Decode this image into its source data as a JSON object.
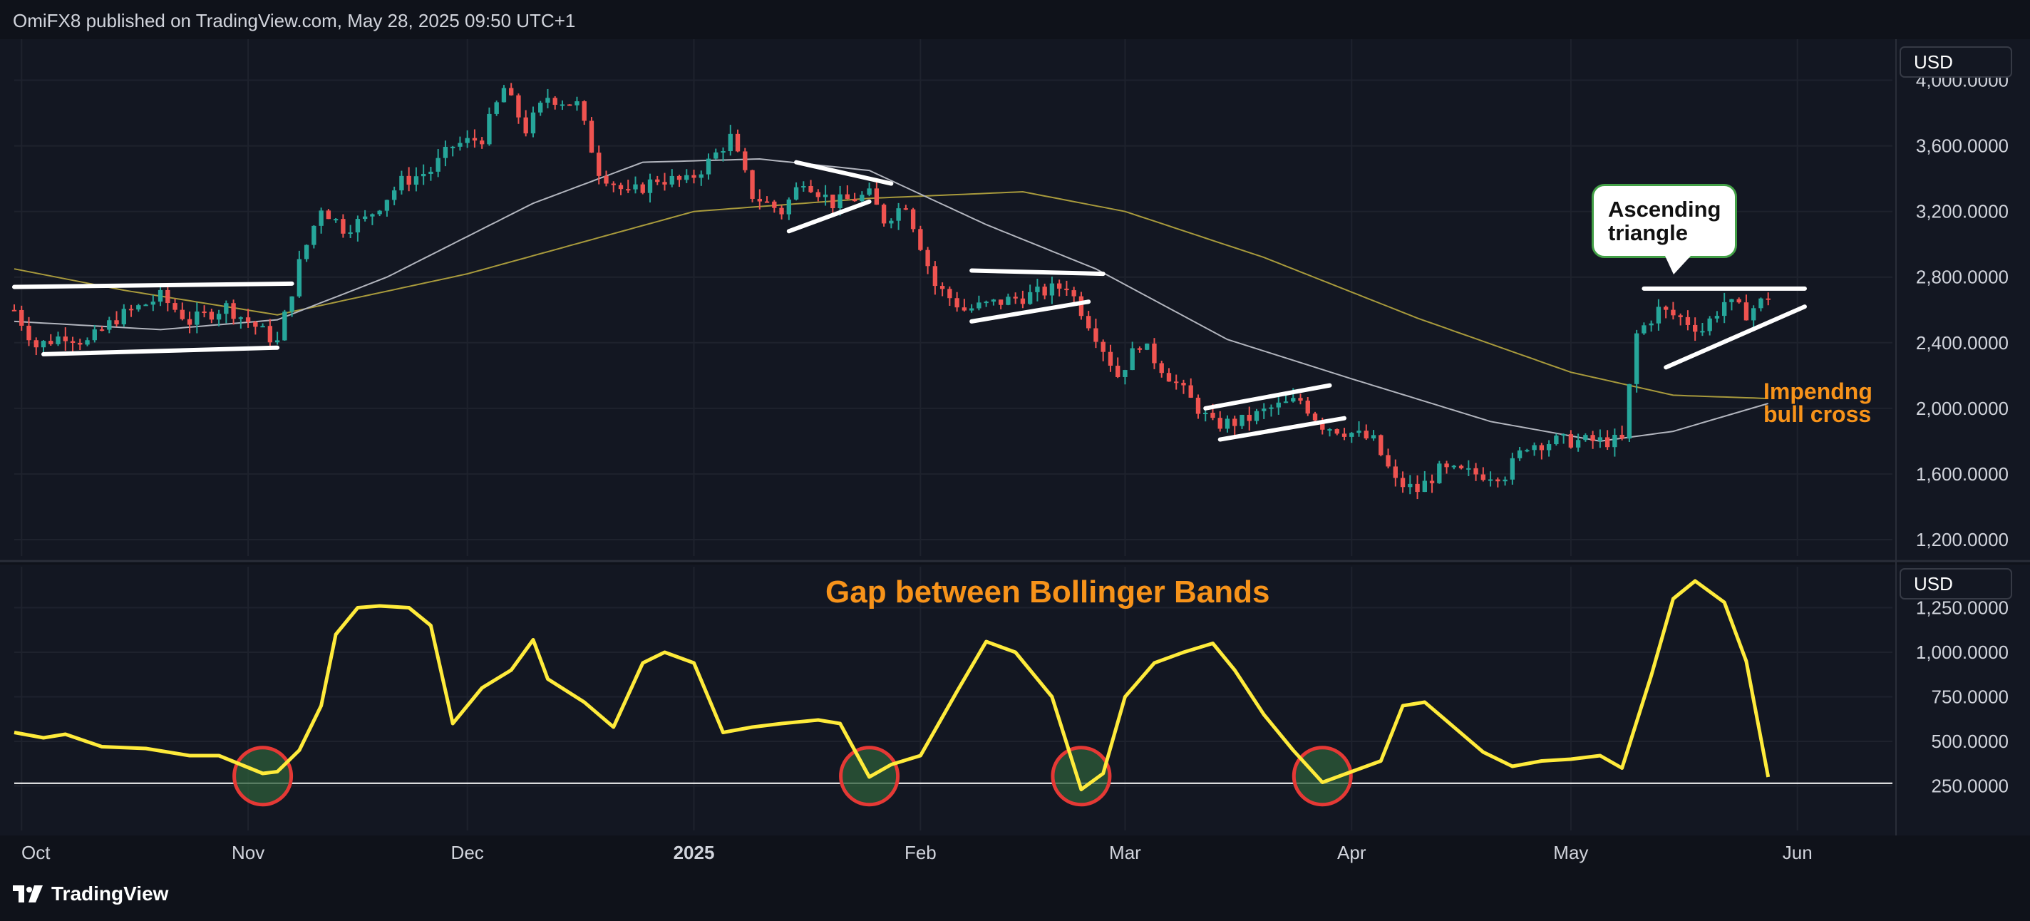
{
  "header": {
    "text": "OmiFX8 published on TradingView.com, May 28, 2025 09:50 UTC+1"
  },
  "footer": {
    "brand": "TradingView"
  },
  "colors": {
    "background": "#0f121a",
    "up": "#26a69a",
    "down": "#ef5350",
    "ma_fast": "#b2b5be",
    "ma_slow": "#a89a3c",
    "oscillator": "#ffeb3b",
    "annotation_orange": "#f7931a",
    "circle_red": "#e53935",
    "circle_fill": "#2e5e3a"
  },
  "annotations": {
    "ascending_triangle_line1": "Ascending",
    "ascending_triangle_line2": "triangle",
    "bull_cross_line1": "Impendng",
    "bull_cross_line2": "bull cross",
    "oscillator_title": "Gap between Bollinger Bands"
  },
  "chart_data": [
    {
      "type": "candlestick",
      "currency_label": "USD",
      "x_ticks": [
        "Oct",
        "Nov",
        "Dec",
        "2025",
        "Feb",
        "Mar",
        "Apr",
        "May",
        "Jun"
      ],
      "x_tick_dates": [
        "2024-10-01",
        "2024-11-01",
        "2024-12-01",
        "2025-01-01",
        "2025-02-01",
        "2025-03-01",
        "2025-04-01",
        "2025-05-01",
        "2025-06-01"
      ],
      "x_range": [
        "2024-09-30",
        "2025-06-14"
      ],
      "y_ticks": [
        "1,200.0000",
        "1,600.0000",
        "2,000.0000",
        "2,400.0000",
        "2,800.0000",
        "3,200.0000",
        "3,600.0000",
        "4,000.0000"
      ],
      "y_tick_values": [
        1200,
        1600,
        2000,
        2400,
        2800,
        3200,
        3600,
        4000
      ],
      "ylim": [
        1100,
        4250
      ],
      "ohlc_keyframes": [
        [
          "2024-09-30",
          2600
        ],
        [
          "2024-10-03",
          2380
        ],
        [
          "2024-10-07",
          2450
        ],
        [
          "2024-10-10",
          2400
        ],
        [
          "2024-10-14",
          2550
        ],
        [
          "2024-10-20",
          2680
        ],
        [
          "2024-10-24",
          2530
        ],
        [
          "2024-10-29",
          2620
        ],
        [
          "2024-11-02",
          2500
        ],
        [
          "2024-11-05",
          2400
        ],
        [
          "2024-11-08",
          2880
        ],
        [
          "2024-11-11",
          3230
        ],
        [
          "2024-11-14",
          3100
        ],
        [
          "2024-11-17",
          3150
        ],
        [
          "2024-11-22",
          3380
        ],
        [
          "2024-11-26",
          3450
        ],
        [
          "2024-11-29",
          3600
        ],
        [
          "2024-12-03",
          3650
        ],
        [
          "2024-12-06",
          3950
        ],
        [
          "2024-12-09",
          3700
        ],
        [
          "2024-12-12",
          3900
        ],
        [
          "2024-12-16",
          3850
        ],
        [
          "2024-12-19",
          3450
        ],
        [
          "2024-12-23",
          3300
        ],
        [
          "2024-12-27",
          3400
        ],
        [
          "2024-12-31",
          3380
        ],
        [
          "2025-01-03",
          3500
        ],
        [
          "2025-01-06",
          3650
        ],
        [
          "2025-01-09",
          3300
        ],
        [
          "2025-01-13",
          3200
        ],
        [
          "2025-01-16",
          3400
        ],
        [
          "2025-01-20",
          3250
        ],
        [
          "2025-01-25",
          3300
        ],
        [
          "2025-01-27",
          3150
        ],
        [
          "2025-01-30",
          3250
        ],
        [
          "2025-02-03",
          2750
        ],
        [
          "2025-02-07",
          2600
        ],
        [
          "2025-02-12",
          2650
        ],
        [
          "2025-02-17",
          2700
        ],
        [
          "2025-02-21",
          2750
        ],
        [
          "2025-02-25",
          2450
        ],
        [
          "2025-02-28",
          2200
        ],
        [
          "2025-03-03",
          2400
        ],
        [
          "2025-03-06",
          2250
        ],
        [
          "2025-03-10",
          2050
        ],
        [
          "2025-03-13",
          1900
        ],
        [
          "2025-03-17",
          1920
        ],
        [
          "2025-03-21",
          2000
        ],
        [
          "2025-03-25",
          2050
        ],
        [
          "2025-03-28",
          1900
        ],
        [
          "2025-04-01",
          1850
        ],
        [
          "2025-04-04",
          1800
        ],
        [
          "2025-04-07",
          1550
        ],
        [
          "2025-04-10",
          1500
        ],
        [
          "2025-04-13",
          1620
        ],
        [
          "2025-04-18",
          1600
        ],
        [
          "2025-04-22",
          1600
        ],
        [
          "2025-04-25",
          1780
        ],
        [
          "2025-04-29",
          1800
        ],
        [
          "2025-05-03",
          1800
        ],
        [
          "2025-05-08",
          1800
        ],
        [
          "2025-05-10",
          2450
        ],
        [
          "2025-05-13",
          2600
        ],
        [
          "2025-05-16",
          2550
        ],
        [
          "2025-05-19",
          2480
        ],
        [
          "2025-05-22",
          2650
        ],
        [
          "2025-05-25",
          2580
        ],
        [
          "2025-05-28",
          2680
        ]
      ],
      "ma_fast_keyframes": [
        [
          "2024-09-30",
          2530
        ],
        [
          "2024-10-20",
          2480
        ],
        [
          "2024-11-05",
          2540
        ],
        [
          "2024-11-20",
          2800
        ],
        [
          "2024-12-10",
          3250
        ],
        [
          "2024-12-25",
          3500
        ],
        [
          "2025-01-10",
          3520
        ],
        [
          "2025-01-25",
          3450
        ],
        [
          "2025-02-10",
          3120
        ],
        [
          "2025-02-25",
          2850
        ],
        [
          "2025-03-15",
          2420
        ],
        [
          "2025-04-01",
          2180
        ],
        [
          "2025-04-20",
          1920
        ],
        [
          "2025-05-05",
          1800
        ],
        [
          "2025-05-15",
          1860
        ],
        [
          "2025-05-28",
          2030
        ]
      ],
      "ma_slow_keyframes": [
        [
          "2024-09-30",
          2850
        ],
        [
          "2024-10-15",
          2720
        ],
        [
          "2024-11-05",
          2570
        ],
        [
          "2024-12-01",
          2820
        ],
        [
          "2025-01-01",
          3200
        ],
        [
          "2025-01-25",
          3280
        ],
        [
          "2025-02-15",
          3320
        ],
        [
          "2025-03-01",
          3200
        ],
        [
          "2025-03-20",
          2920
        ],
        [
          "2025-04-10",
          2550
        ],
        [
          "2025-05-01",
          2220
        ],
        [
          "2025-05-15",
          2080
        ],
        [
          "2025-05-28",
          2060
        ]
      ],
      "pattern_lines": [
        [
          [
            "2024-09-30",
            2740
          ],
          [
            "2024-11-07",
            2760
          ]
        ],
        [
          [
            "2024-10-04",
            2330
          ],
          [
            "2024-11-05",
            2370
          ]
        ],
        [
          [
            "2025-01-15",
            3500
          ],
          [
            "2025-01-28",
            3370
          ]
        ],
        [
          [
            "2025-01-14",
            3080
          ],
          [
            "2025-01-25",
            3260
          ]
        ],
        [
          [
            "2025-02-08",
            2840
          ],
          [
            "2025-02-26",
            2820
          ]
        ],
        [
          [
            "2025-02-08",
            2530
          ],
          [
            "2025-02-24",
            2650
          ]
        ],
        [
          [
            "2025-03-12",
            2000
          ],
          [
            "2025-03-29",
            2140
          ]
        ],
        [
          [
            "2025-03-14",
            1810
          ],
          [
            "2025-03-31",
            1940
          ]
        ],
        [
          [
            "2025-05-11",
            2730
          ],
          [
            "2025-06-02",
            2730
          ]
        ],
        [
          [
            "2025-05-14",
            2250
          ],
          [
            "2025-06-02",
            2620
          ]
        ]
      ]
    },
    {
      "type": "line",
      "currency_label": "USD",
      "title": "Gap between Bollinger Bands",
      "y_ticks": [
        "250.0000",
        "500.0000",
        "750.0000",
        "1,000.0000",
        "1,250.0000"
      ],
      "y_tick_values": [
        250,
        500,
        750,
        1000,
        1250
      ],
      "ylim": [
        0,
        1480
      ],
      "baseline": 265,
      "series_keyframes": [
        [
          "2024-09-30",
          550
        ],
        [
          "2024-10-04",
          520
        ],
        [
          "2024-10-07",
          540
        ],
        [
          "2024-10-12",
          470
        ],
        [
          "2024-10-18",
          460
        ],
        [
          "2024-10-24",
          420
        ],
        [
          "2024-10-28",
          420
        ],
        [
          "2024-11-03",
          320
        ],
        [
          "2024-11-05",
          330
        ],
        [
          "2024-11-08",
          450
        ],
        [
          "2024-11-11",
          700
        ],
        [
          "2024-11-13",
          1100
        ],
        [
          "2024-11-16",
          1250
        ],
        [
          "2024-11-19",
          1260
        ],
        [
          "2024-11-23",
          1250
        ],
        [
          "2024-11-26",
          1150
        ],
        [
          "2024-11-29",
          600
        ],
        [
          "2024-12-03",
          800
        ],
        [
          "2024-12-07",
          900
        ],
        [
          "2024-12-10",
          1070
        ],
        [
          "2024-12-12",
          850
        ],
        [
          "2024-12-17",
          720
        ],
        [
          "2024-12-21",
          580
        ],
        [
          "2024-12-25",
          940
        ],
        [
          "2024-12-28",
          1000
        ],
        [
          "2025-01-01",
          940
        ],
        [
          "2025-01-05",
          550
        ],
        [
          "2025-01-09",
          580
        ],
        [
          "2025-01-13",
          600
        ],
        [
          "2025-01-18",
          620
        ],
        [
          "2025-01-21",
          600
        ],
        [
          "2025-01-25",
          300
        ],
        [
          "2025-01-28",
          370
        ],
        [
          "2025-02-01",
          420
        ],
        [
          "2025-02-06",
          780
        ],
        [
          "2025-02-10",
          1060
        ],
        [
          "2025-02-14",
          1000
        ],
        [
          "2025-02-19",
          750
        ],
        [
          "2025-02-23",
          230
        ],
        [
          "2025-02-26",
          320
        ],
        [
          "2025-03-01",
          750
        ],
        [
          "2025-03-05",
          940
        ],
        [
          "2025-03-09",
          1000
        ],
        [
          "2025-03-13",
          1050
        ],
        [
          "2025-03-16",
          900
        ],
        [
          "2025-03-20",
          650
        ],
        [
          "2025-03-24",
          450
        ],
        [
          "2025-03-28",
          270
        ],
        [
          "2025-04-01",
          330
        ],
        [
          "2025-04-05",
          390
        ],
        [
          "2025-04-08",
          700
        ],
        [
          "2025-04-11",
          720
        ],
        [
          "2025-04-15",
          580
        ],
        [
          "2025-04-19",
          440
        ],
        [
          "2025-04-23",
          360
        ],
        [
          "2025-04-27",
          390
        ],
        [
          "2025-05-01",
          400
        ],
        [
          "2025-05-05",
          420
        ],
        [
          "2025-05-08",
          350
        ],
        [
          "2025-05-12",
          870
        ],
        [
          "2025-05-15",
          1300
        ],
        [
          "2025-05-18",
          1400
        ],
        [
          "2025-05-22",
          1280
        ],
        [
          "2025-05-25",
          950
        ],
        [
          "2025-05-28",
          300
        ]
      ],
      "circled_dates": [
        "2024-11-03",
        "2025-01-25",
        "2025-02-23",
        "2025-03-28"
      ]
    }
  ]
}
